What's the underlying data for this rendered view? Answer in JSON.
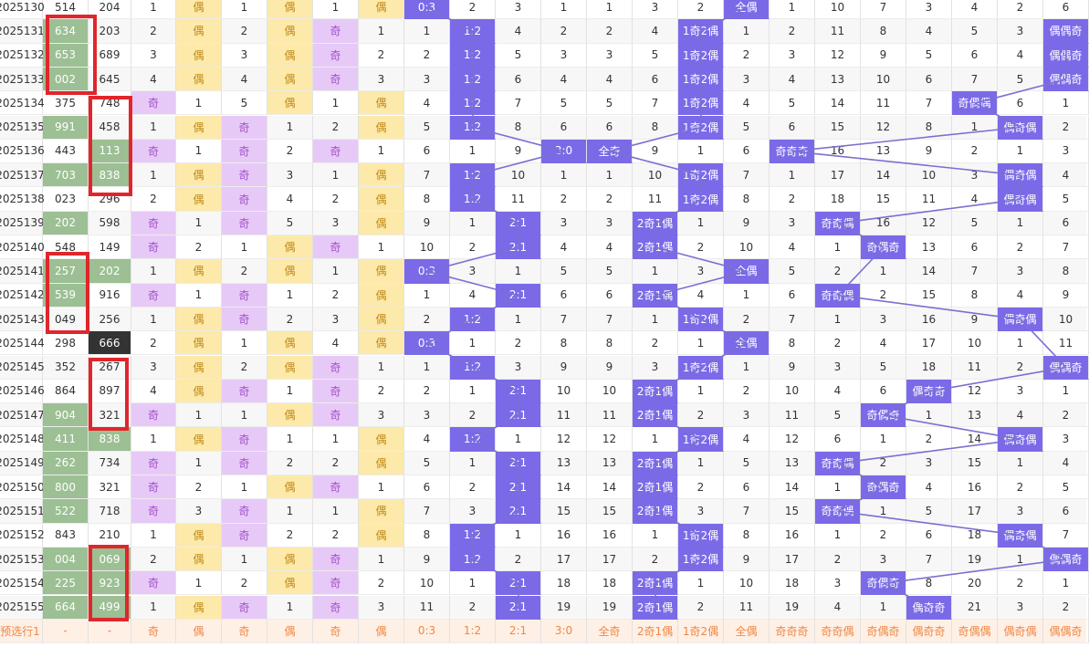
{
  "colors": {
    "hit_bg": "#7a6ae8",
    "yellow_bg": "#fde9a9",
    "purple_bg": "#e7c9f7",
    "green_bg": "#9cbf94",
    "highlight_box": "#e0262b",
    "line": "#7a70d0"
  },
  "rows": [
    {
      "cells": [
        "2025130",
        "514",
        "204",
        "1",
        "偶",
        "1",
        "偶",
        "1",
        "偶",
        "0:3",
        "2",
        "3",
        "1",
        "1",
        "3",
        "2",
        "全偶",
        "1",
        "10",
        "7",
        "3",
        "4",
        "2",
        "6"
      ]
    },
    {
      "cells": [
        "2025131",
        "634",
        "203",
        "2",
        "偶",
        "2",
        "偶",
        "奇",
        "1",
        "1",
        "1:2",
        "4",
        "2",
        "2",
        "4",
        "1奇2偶",
        "1",
        "2",
        "11",
        "8",
        "4",
        "5",
        "3",
        "偶偶奇"
      ]
    },
    {
      "cells": [
        "2025132",
        "653",
        "689",
        "3",
        "偶",
        "3",
        "偶",
        "奇",
        "2",
        "2",
        "1:2",
        "5",
        "3",
        "3",
        "5",
        "1奇2偶",
        "2",
        "3",
        "12",
        "9",
        "5",
        "6",
        "4",
        "偶偶奇"
      ]
    },
    {
      "cells": [
        "2025133",
        "002",
        "645",
        "4",
        "偶",
        "4",
        "偶",
        "奇",
        "3",
        "3",
        "1:2",
        "6",
        "4",
        "4",
        "6",
        "1奇2偶",
        "3",
        "4",
        "13",
        "10",
        "6",
        "7",
        "5",
        "偶偶奇"
      ]
    },
    {
      "cells": [
        "2025134",
        "375",
        "748",
        "奇",
        "1",
        "5",
        "偶",
        "1",
        "偶",
        "4",
        "1:2",
        "7",
        "5",
        "5",
        "7",
        "1奇2偶",
        "4",
        "5",
        "14",
        "11",
        "7",
        "奇偶偶",
        "6",
        "1"
      ]
    },
    {
      "cells": [
        "2025135",
        "991",
        "458",
        "1",
        "偶",
        "奇",
        "1",
        "2",
        "偶",
        "5",
        "1:2",
        "8",
        "6",
        "6",
        "8",
        "1奇2偶",
        "5",
        "6",
        "15",
        "12",
        "8",
        "1",
        "偶奇偶",
        "2"
      ]
    },
    {
      "cells": [
        "2025136",
        "443",
        "113",
        "奇",
        "1",
        "奇",
        "2",
        "奇",
        "1",
        "6",
        "1",
        "9",
        "3:0",
        "全奇",
        "9",
        "1",
        "6",
        "奇奇奇",
        "16",
        "13",
        "9",
        "2",
        "1",
        "3"
      ]
    },
    {
      "cells": [
        "2025137",
        "703",
        "838",
        "1",
        "偶",
        "奇",
        "3",
        "1",
        "偶",
        "7",
        "1:2",
        "10",
        "1",
        "1",
        "10",
        "1奇2偶",
        "7",
        "1",
        "17",
        "14",
        "10",
        "3",
        "偶奇偶",
        "4"
      ]
    },
    {
      "cells": [
        "2025138",
        "023",
        "296",
        "2",
        "偶",
        "奇",
        "4",
        "2",
        "偶",
        "8",
        "1:2",
        "11",
        "2",
        "2",
        "11",
        "1奇2偶",
        "8",
        "2",
        "18",
        "15",
        "11",
        "4",
        "偶奇偶",
        "5"
      ]
    },
    {
      "cells": [
        "2025139",
        "202",
        "598",
        "奇",
        "1",
        "奇",
        "5",
        "3",
        "偶",
        "9",
        "1",
        "2:1",
        "3",
        "3",
        "2奇1偶",
        "1",
        "9",
        "3",
        "奇奇偶",
        "16",
        "12",
        "5",
        "1",
        "6"
      ]
    },
    {
      "cells": [
        "2025140",
        "548",
        "149",
        "奇",
        "2",
        "1",
        "偶",
        "奇",
        "1",
        "10",
        "2",
        "2:1",
        "4",
        "4",
        "2奇1偶",
        "2",
        "10",
        "4",
        "1",
        "奇偶奇",
        "13",
        "6",
        "2",
        "7"
      ]
    },
    {
      "cells": [
        "2025141",
        "257",
        "202",
        "1",
        "偶",
        "2",
        "偶",
        "1",
        "偶",
        "0:3",
        "3",
        "1",
        "5",
        "5",
        "1",
        "3",
        "全偶",
        "5",
        "2",
        "1",
        "14",
        "7",
        "3",
        "8"
      ]
    },
    {
      "cells": [
        "2025142",
        "539",
        "916",
        "奇",
        "1",
        "奇",
        "1",
        "2",
        "偶",
        "1",
        "4",
        "2:1",
        "6",
        "6",
        "2奇1偶",
        "4",
        "1",
        "6",
        "奇奇偶",
        "2",
        "15",
        "8",
        "4",
        "9"
      ]
    },
    {
      "cells": [
        "2025143",
        "049",
        "256",
        "1",
        "偶",
        "奇",
        "2",
        "3",
        "偶",
        "2",
        "1:2",
        "1",
        "7",
        "7",
        "1",
        "1奇2偶",
        "2",
        "7",
        "1",
        "3",
        "16",
        "9",
        "偶奇偶",
        "10"
      ]
    },
    {
      "cells": [
        "2025144",
        "298",
        "666",
        "2",
        "偶",
        "1",
        "偶",
        "4",
        "偶",
        "0:3",
        "1",
        "2",
        "8",
        "8",
        "2",
        "1",
        "全偶",
        "8",
        "2",
        "4",
        "17",
        "10",
        "1",
        "11"
      ]
    },
    {
      "cells": [
        "2025145",
        "352",
        "267",
        "3",
        "偶",
        "2",
        "偶",
        "奇",
        "1",
        "1",
        "1:2",
        "3",
        "9",
        "9",
        "3",
        "1奇2偶",
        "1",
        "9",
        "3",
        "5",
        "18",
        "11",
        "2",
        "偶偶奇"
      ]
    },
    {
      "cells": [
        "2025146",
        "864",
        "897",
        "4",
        "偶",
        "奇",
        "1",
        "奇",
        "2",
        "2",
        "1",
        "2:1",
        "10",
        "10",
        "2奇1偶",
        "1",
        "2",
        "10",
        "4",
        "6",
        "偶奇奇",
        "12",
        "3",
        "1"
      ]
    },
    {
      "cells": [
        "2025147",
        "904",
        "321",
        "奇",
        "1",
        "1",
        "偶",
        "奇",
        "3",
        "3",
        "2",
        "2:1",
        "11",
        "11",
        "2奇1偶",
        "2",
        "3",
        "11",
        "5",
        "奇偶奇",
        "1",
        "13",
        "4",
        "2"
      ]
    },
    {
      "cells": [
        "2025148",
        "411",
        "838",
        "1",
        "偶",
        "奇",
        "1",
        "1",
        "偶",
        "4",
        "1:2",
        "1",
        "12",
        "12",
        "1",
        "1奇2偶",
        "4",
        "12",
        "6",
        "1",
        "2",
        "14",
        "偶奇偶",
        "3"
      ]
    },
    {
      "cells": [
        "2025149",
        "262",
        "734",
        "奇",
        "1",
        "奇",
        "2",
        "2",
        "偶",
        "5",
        "1",
        "2:1",
        "13",
        "13",
        "2奇1偶",
        "1",
        "5",
        "13",
        "奇奇偶",
        "2",
        "3",
        "15",
        "1",
        "4"
      ]
    },
    {
      "cells": [
        "2025150",
        "800",
        "321",
        "奇",
        "2",
        "1",
        "偶",
        "奇",
        "1",
        "6",
        "2",
        "2:1",
        "14",
        "14",
        "2奇1偶",
        "2",
        "6",
        "14",
        "1",
        "奇偶奇",
        "4",
        "16",
        "2",
        "5"
      ]
    },
    {
      "cells": [
        "2025151",
        "522",
        "718",
        "奇",
        "3",
        "奇",
        "1",
        "1",
        "偶",
        "7",
        "3",
        "2:1",
        "15",
        "15",
        "2奇1偶",
        "3",
        "7",
        "15",
        "奇奇偶",
        "1",
        "5",
        "17",
        "3",
        "6"
      ]
    },
    {
      "cells": [
        "2025152",
        "843",
        "210",
        "1",
        "偶",
        "奇",
        "2",
        "2",
        "偶",
        "8",
        "1:2",
        "1",
        "16",
        "16",
        "1",
        "1奇2偶",
        "8",
        "16",
        "1",
        "2",
        "6",
        "18",
        "偶奇偶",
        "7"
      ]
    },
    {
      "cells": [
        "2025153",
        "004",
        "069",
        "2",
        "偶",
        "1",
        "偶",
        "奇",
        "1",
        "9",
        "1:2",
        "2",
        "17",
        "17",
        "2",
        "1奇2偶",
        "9",
        "17",
        "2",
        "3",
        "7",
        "19",
        "1",
        "偶偶奇"
      ]
    },
    {
      "cells": [
        "2025154",
        "225",
        "923",
        "奇",
        "1",
        "2",
        "偶",
        "奇",
        "2",
        "10",
        "1",
        "2:1",
        "18",
        "18",
        "2奇1偶",
        "1",
        "10",
        "18",
        "3",
        "奇偶奇",
        "8",
        "20",
        "2",
        "1"
      ]
    },
    {
      "cells": [
        "2025155",
        "664",
        "499",
        "1",
        "偶",
        "奇",
        "1",
        "奇",
        "3",
        "11",
        "2",
        "2:1",
        "19",
        "19",
        "2奇1偶",
        "2",
        "11",
        "19",
        "4",
        "1",
        "偶奇奇",
        "21",
        "3",
        "2"
      ]
    }
  ],
  "prediction_row": {
    "cells": [
      "预选行1",
      "-",
      "-",
      "奇",
      "偶",
      "奇",
      "偶",
      "奇",
      "偶",
      "0:3",
      "1:2",
      "2:1",
      "3:0",
      "全奇",
      "2奇1偶",
      "1奇2偶",
      "全偶",
      "奇奇奇",
      "奇奇偶",
      "奇偶奇",
      "偶奇奇",
      "奇偶偶",
      "偶奇偶",
      "偶偶奇"
    ]
  }
}
